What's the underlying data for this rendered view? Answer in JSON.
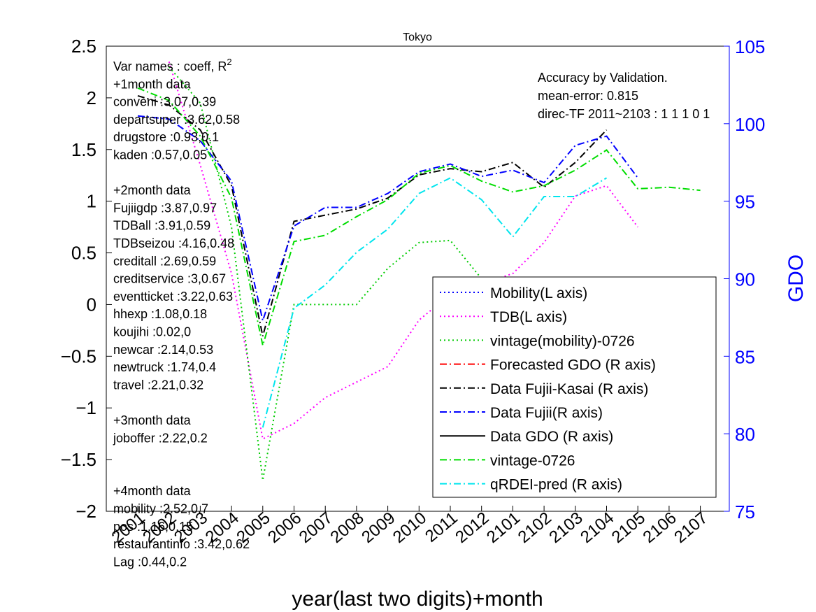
{
  "chart_data": {
    "type": "line",
    "title": "Tokyo",
    "xlabel": "year(last two digits)+month",
    "ylabel_right": "GDO",
    "ylim_left": [
      -2,
      2.5
    ],
    "ylim_right": [
      75,
      105
    ],
    "left_ticks": [
      "2.5",
      "2",
      "1.5",
      "1",
      "0.5",
      "0",
      "−0.5",
      "−1",
      "−1.5",
      "−2"
    ],
    "right_ticks": [
      "105",
      "100",
      "95",
      "90",
      "85",
      "80",
      "75"
    ],
    "categories": [
      "2001",
      "2002",
      "2003",
      "2004",
      "2005",
      "2006",
      "2007",
      "2008",
      "2009",
      "2010",
      "2011",
      "2012",
      "2101",
      "2102",
      "2103",
      "2104",
      "2105",
      "2106",
      "2107"
    ],
    "accent_right_axis": "#0000ff",
    "series": [
      {
        "name": "Mobility(L axis)",
        "axis": "L",
        "color": "#0000ff",
        "dash": "2,4",
        "values": [
          null,
          null,
          null,
          null,
          null,
          null,
          null,
          null,
          null,
          null,
          null,
          null,
          null,
          null,
          null,
          null,
          null,
          null,
          null
        ]
      },
      {
        "name": "TDB(L axis)",
        "axis": "L",
        "color": "#ff00ff",
        "dash": "2,4",
        "values": [
          null,
          2.35,
          1.35,
          0.3,
          -1.3,
          -1.15,
          -0.9,
          -0.75,
          -0.6,
          -0.15,
          0.1,
          0.2,
          0.3,
          0.6,
          1.05,
          1.15,
          0.75,
          null,
          null
        ]
      },
      {
        "name": "vintage(mobility)-0726",
        "axis": "L",
        "color": "#00cc00",
        "dash": "2,4",
        "values": [
          null,
          2.3,
          1.95,
          0.75,
          -1.7,
          0.0,
          0.0,
          0.0,
          0.35,
          0.6,
          0.62,
          0.25,
          null,
          null,
          null,
          null,
          null,
          null,
          null
        ]
      },
      {
        "name": "Forecasted GDO (R axis)",
        "axis": "R",
        "color": "#ff0000",
        "dash": "10,4,2,4",
        "values": [
          null,
          null,
          null,
          null,
          null,
          null,
          null,
          null,
          null,
          null,
          null,
          null,
          null,
          null,
          null,
          null,
          null,
          null,
          null
        ]
      },
      {
        "name": "Data Fujii-Kasai (R axis)",
        "axis": "R",
        "color": "#000000",
        "dash": "10,4,2,4",
        "values": [
          101.8,
          101.2,
          99.6,
          96.0,
          86.3,
          93.7,
          94.1,
          94.5,
          95.2,
          96.7,
          97.1,
          96.9,
          97.5,
          95.9,
          97.5,
          99.6,
          null,
          null,
          null
        ]
      },
      {
        "name": "Data Fujii(R axis)",
        "axis": "R",
        "color": "#0000ff",
        "dash": "10,4,2,4",
        "values": [
          100.5,
          100.3,
          98.9,
          96.3,
          87.3,
          93.4,
          94.6,
          94.6,
          95.5,
          96.9,
          97.4,
          96.6,
          97.0,
          96.2,
          98.6,
          99.2,
          96.5,
          null,
          null
        ]
      },
      {
        "name": "Data GDO (R axis)",
        "axis": "R",
        "color": "#000000",
        "dash": "",
        "values": [
          null,
          null,
          null,
          null,
          null,
          null,
          null,
          null,
          null,
          null,
          null,
          null,
          null,
          null,
          null,
          null,
          null,
          null,
          null
        ]
      },
      {
        "name": "vintage-0726",
        "axis": "R",
        "color": "#00dd00",
        "dash": "10,4,2,4",
        "values": [
          102.3,
          101.5,
          99.2,
          95.2,
          85.7,
          92.4,
          92.8,
          94.0,
          95.1,
          96.8,
          97.3,
          96.3,
          95.6,
          96.0,
          97.0,
          98.3,
          95.8,
          95.9,
          95.7
        ]
      },
      {
        "name": "qRDEI-pred (R axis)",
        "axis": "R",
        "color": "#00e5ee",
        "dash": "10,4,2,4",
        "values": [
          null,
          null,
          null,
          null,
          80.4,
          88.1,
          89.6,
          91.7,
          93.2,
          95.5,
          96.5,
          95.1,
          92.7,
          95.3,
          95.3,
          96.5,
          null,
          null,
          null
        ]
      }
    ],
    "legend_position": "lower-right"
  },
  "annotations_left": {
    "lines": [
      "Var names : coeff, R",
      "+1month data",
      "conveni :3.07,0.39",
      "departsuper :3.62,0.58",
      "drugstore :0.93,0.1",
      "kaden :0.57,0.05",
      "",
      "+2month data",
      "Fujiigdp :3.87,0.97",
      "TDBall :3.91,0.59",
      "TDBseizou :4.16,0.48",
      "creditall :2.69,0.59",
      "creditservice :3,0.67",
      "eventticket :3.22,0.63",
      "hhexp :1.08,0.18",
      "koujihi :0.02,0",
      "newcar :2.14,0.53",
      "newtruck :1.74,0.4",
      "travel :2.21,0.32",
      "",
      "+3month data",
      "joboffer :2.22,0.2",
      "",
      "",
      "+4month data",
      "mobility :2.52,0.7",
      "pos :1.16,0.15",
      "restaurantinfo :3.42,0.62",
      "Lag :0.44,0.2"
    ],
    "superscript": "2"
  },
  "annotations_right": {
    "lines": [
      "Accuracy by Validation.",
      "mean-error: 0.815",
      "direc-TF 2011~2103 : 1  1  1  0  1"
    ]
  }
}
